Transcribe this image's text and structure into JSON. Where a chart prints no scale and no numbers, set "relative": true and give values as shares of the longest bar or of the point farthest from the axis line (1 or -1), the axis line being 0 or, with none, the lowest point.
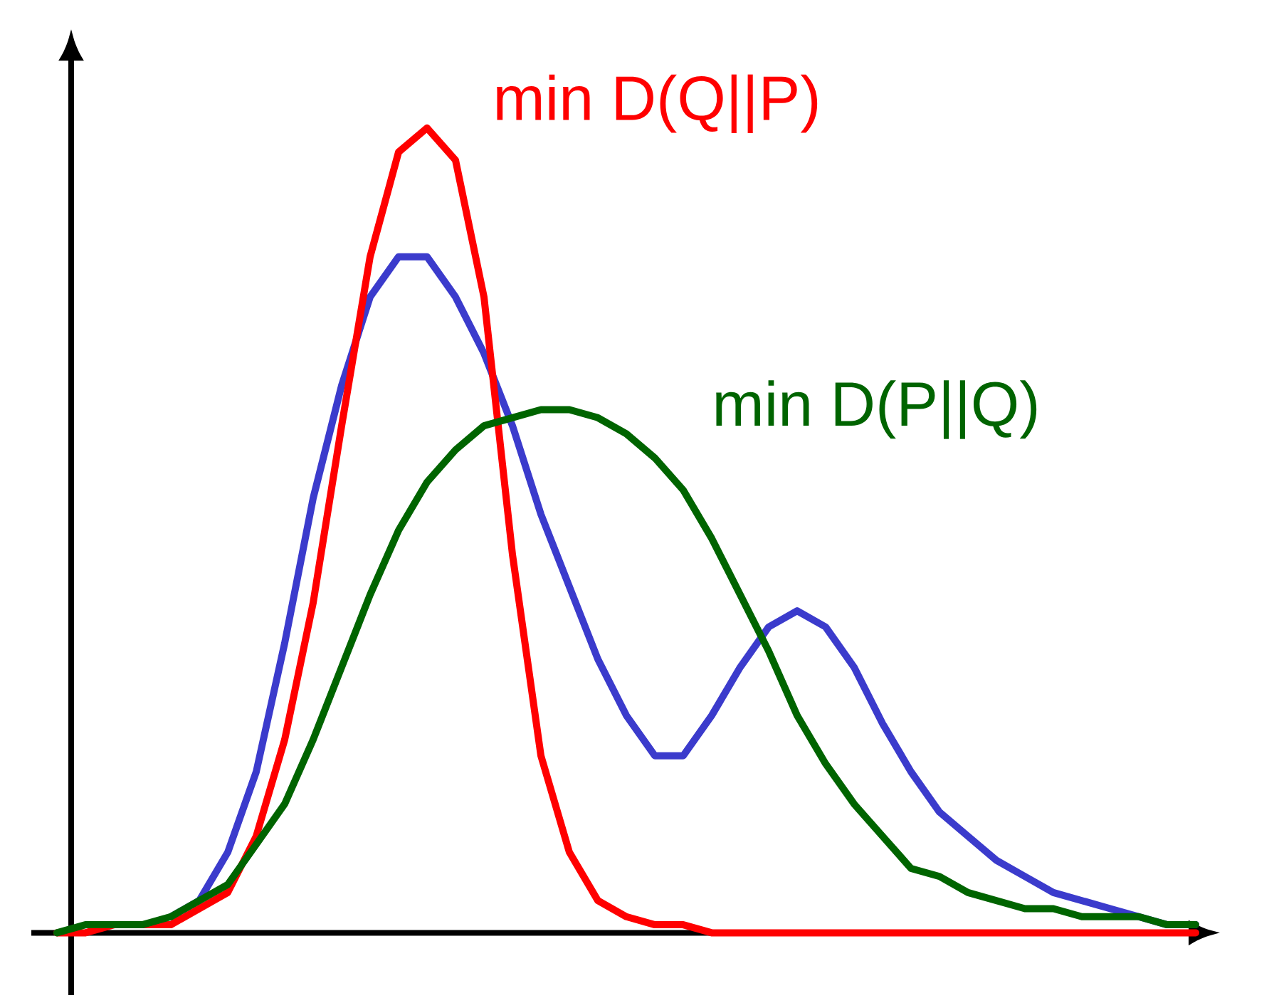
{
  "chart_data": {
    "type": "line",
    "relative": true,
    "categories": [
      null,
      null,
      null,
      null,
      null,
      null,
      null,
      null,
      null,
      null,
      null,
      null,
      null,
      null,
      null,
      null,
      null,
      null,
      null,
      null,
      null,
      null,
      null,
      null,
      null,
      null,
      null,
      null,
      null,
      null,
      null,
      null,
      null,
      null,
      null,
      null,
      null,
      null,
      null,
      null,
      null
    ],
    "series": [
      {
        "color": "#3b3bcc",
        "values": [
          null,
          null,
          null,
          null,
          0.02,
          0.04,
          0.1,
          0.2,
          0.36,
          0.54,
          0.68,
          0.79,
          0.84,
          0.84,
          0.79,
          0.72,
          0.63,
          0.52,
          0.43,
          0.34,
          0.27,
          0.22,
          0.22,
          0.27,
          0.33,
          0.38,
          0.4,
          0.38,
          0.33,
          0.26,
          0.2,
          0.15,
          0.12,
          0.09,
          0.07,
          0.05,
          0.04,
          0.03,
          0.02,
          0.01,
          0.01
        ]
      },
      {
        "name": "min D(Q||P)",
        "color": "#ff0000",
        "values": [
          0.0,
          0.0,
          0.01,
          0.01,
          0.01,
          0.03,
          0.05,
          0.12,
          0.24,
          0.41,
          0.63,
          0.84,
          0.97,
          1.0,
          0.96,
          0.79,
          0.47,
          0.22,
          0.1,
          0.04,
          0.02,
          0.01,
          0.01,
          0.0,
          0.0,
          0.0,
          0.0,
          0.0,
          0.0,
          0.0,
          0.0,
          0.0,
          0.0,
          0.0,
          0.0,
          0.0,
          0.0,
          0.0,
          0.0,
          0.0,
          0.0
        ]
      },
      {
        "name": "min D(P||Q)",
        "color": "#006400",
        "values": [
          0.0,
          0.01,
          0.01,
          0.01,
          0.02,
          0.04,
          0.06,
          0.11,
          0.16,
          0.24,
          0.33,
          0.42,
          0.5,
          0.56,
          0.6,
          0.63,
          0.64,
          0.65,
          0.65,
          0.64,
          0.62,
          0.59,
          0.55,
          0.49,
          0.42,
          0.35,
          0.27,
          0.21,
          0.16,
          0.12,
          0.08,
          0.07,
          0.05,
          0.04,
          0.03,
          0.03,
          0.02,
          0.02,
          0.02,
          0.01,
          0.01
        ]
      }
    ]
  }
}
